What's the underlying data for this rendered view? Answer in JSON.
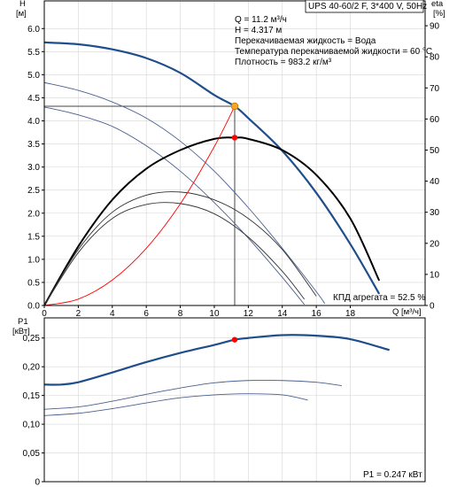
{
  "title": "UPS 40-60/2 F, 3*400 V, 50Hz",
  "info": [
    "Q = 11.2 м³/ч",
    "H = 4.317 м",
    "Перекачиваемая жидкость = Вода",
    "Температура перекачиваемой жидкости = 60 °C",
    "Плотность = 983.2 кг/м³"
  ],
  "eta_note": "КПД агрегата = 52.5 %",
  "p1_note": "P1 = 0.247 кВт",
  "colors": {
    "primary_curve": "#1f4e8c",
    "thin_curve": "#4a5f8f",
    "efficiency_curve": "#000000",
    "system_curve": "#ff0000",
    "duty_marker": "#f5a623",
    "point_marker": "#ff0000"
  },
  "chart_data": [
    {
      "type": "line",
      "name": "head",
      "ylabel_top": "H",
      "ylabel_unit": "[м]",
      "y2label_top": "eta",
      "y2label_unit": "[%]",
      "xlabel": "Q [м³/ч]",
      "xlim": [
        0,
        22.4
      ],
      "ylim": [
        0,
        6.6
      ],
      "y2lim": [
        0,
        98
      ],
      "xticks": [
        "0",
        "2",
        "4",
        "6",
        "8",
        "10",
        "12",
        "14",
        "16",
        "18"
      ],
      "yticks": [
        "0.0",
        "0.5",
        "1.0",
        "1.5",
        "2.0",
        "2.5",
        "3.0",
        "3.5",
        "4.0",
        "4.5",
        "5.0",
        "5.5",
        "6.0"
      ],
      "y2ticks": [
        "0",
        "10",
        "20",
        "30",
        "40",
        "50",
        "60",
        "70",
        "80",
        "90"
      ],
      "series": [
        {
          "role": "head_max",
          "x": [
            0,
            2,
            4,
            6,
            8,
            10,
            11.2,
            12,
            14,
            16,
            18,
            19.7
          ],
          "y": [
            5.7,
            5.66,
            5.55,
            5.36,
            5.04,
            4.56,
            4.317,
            4.06,
            3.35,
            2.44,
            1.33,
            0.25
          ]
        },
        {
          "role": "head_speed2",
          "x": [
            0,
            2,
            4,
            6,
            8,
            10,
            12,
            14,
            16,
            16.5
          ],
          "y": [
            4.83,
            4.66,
            4.41,
            4.06,
            3.56,
            2.91,
            2.12,
            1.24,
            0.3,
            0.04
          ]
        },
        {
          "role": "head_speed3",
          "x": [
            0,
            2,
            4,
            6,
            8,
            10,
            12,
            14,
            15.3
          ],
          "y": [
            4.3,
            4.13,
            3.88,
            3.46,
            2.91,
            2.23,
            1.46,
            0.61,
            0.02
          ]
        },
        {
          "role": "eta_max",
          "axis": "y2",
          "x": [
            0,
            2,
            4,
            6,
            8,
            10,
            11.2,
            12,
            14,
            16,
            18,
            19.7
          ],
          "y": [
            0,
            19,
            34,
            44,
            50,
            53.6,
            54,
            53.6,
            50,
            42,
            28,
            8
          ]
        },
        {
          "role": "eta_speed2",
          "axis": "y2",
          "x": [
            0,
            2,
            4,
            6,
            8,
            10,
            12,
            14,
            16
          ],
          "y": [
            0,
            18,
            30,
            35.5,
            36.5,
            34,
            28,
            18,
            3
          ]
        },
        {
          "role": "eta_speed3",
          "axis": "y2",
          "x": [
            0,
            2,
            4,
            6,
            8,
            10,
            12,
            14,
            15.3
          ],
          "y": [
            0,
            17,
            28,
            32.5,
            32.8,
            29.5,
            22,
            11,
            2
          ]
        },
        {
          "role": "system_curve",
          "x": [
            0,
            2,
            4,
            6,
            8,
            10,
            11.2
          ],
          "y": [
            0,
            0.138,
            0.551,
            1.239,
            2.202,
            3.441,
            4.317
          ]
        }
      ],
      "duty_point": {
        "x": 11.2,
        "y": 4.317
      },
      "eta_point": {
        "x": 11.2,
        "y": 54
      }
    },
    {
      "type": "line",
      "name": "power",
      "ylabel_top": "P1",
      "ylabel_unit": "[кВт]",
      "xlim": [
        0,
        22.4
      ],
      "ylim": [
        0,
        0.285
      ],
      "yticks": [
        "0",
        "0,05",
        "0,10",
        "0,15",
        "0,20",
        "0,25"
      ],
      "series": [
        {
          "role": "p1_max",
          "x": [
            0,
            1,
            2,
            4,
            6,
            8,
            10,
            11.2,
            12,
            14,
            16,
            18,
            20.3
          ],
          "y": [
            0.169,
            0.169,
            0.173,
            0.19,
            0.208,
            0.224,
            0.238,
            0.247,
            0.25,
            0.255,
            0.254,
            0.248,
            0.229
          ]
        },
        {
          "role": "p1_speed2",
          "x": [
            0,
            2,
            4,
            6,
            8,
            10,
            12,
            14,
            16,
            17.5
          ],
          "y": [
            0.126,
            0.13,
            0.14,
            0.152,
            0.163,
            0.172,
            0.176,
            0.176,
            0.173,
            0.167
          ]
        },
        {
          "role": "p1_speed3",
          "x": [
            0,
            2,
            4,
            6,
            8,
            10,
            12,
            14,
            15.5
          ],
          "y": [
            0.115,
            0.119,
            0.127,
            0.137,
            0.146,
            0.151,
            0.153,
            0.151,
            0.142
          ]
        }
      ],
      "p1_point": {
        "x": 11.2,
        "y": 0.247
      }
    }
  ]
}
